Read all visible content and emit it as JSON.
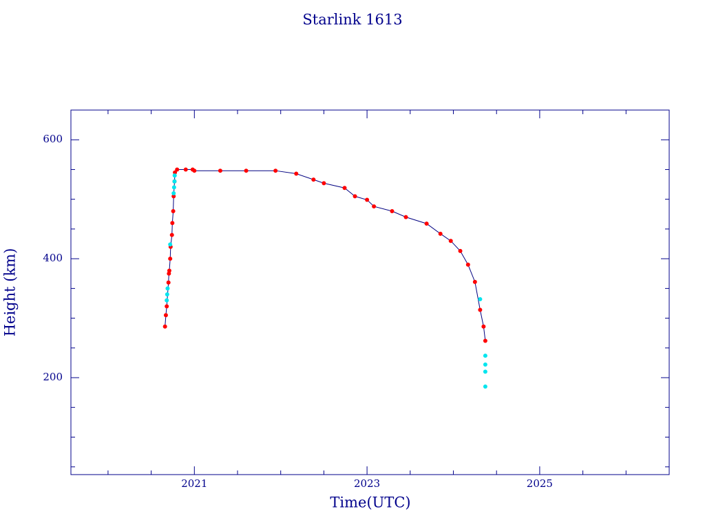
{
  "chart_data": {
    "type": "scatter",
    "title": "Starlink 1613",
    "x_label": "Time(UTC)",
    "y_label": "Height (km)",
    "xlim": [
      2019.57,
      2026.5
    ],
    "xticks": [
      2021,
      2023,
      2025
    ],
    "xminorticks": [
      2020,
      2020.5,
      2021.5,
      2022,
      2022.5,
      2023.5,
      2024,
      2024.5,
      2025.5,
      2026
    ],
    "ylim": [
      37,
      650
    ],
    "yticks": [
      200,
      400,
      600
    ],
    "yminorticks": [
      50,
      100,
      150,
      250,
      300,
      350,
      450,
      500,
      550,
      650
    ],
    "line_color": "#000080",
    "axis_color": "#00008b",
    "series": [
      {
        "color": "#ff0000",
        "connect": true,
        "x": [
          2020.66,
          2020.67,
          2020.68,
          2020.7,
          2020.705,
          2020.71,
          2020.72,
          2020.725,
          2020.74,
          2020.745,
          2020.755,
          2020.76,
          2020.77,
          2020.775,
          2020.8,
          2020.9,
          2020.98,
          2021.0,
          2021.3,
          2021.6,
          2021.94,
          2022.18,
          2022.38,
          2022.5,
          2022.74,
          2022.86,
          2023.0,
          2023.08,
          2023.29,
          2023.45,
          2023.69,
          2023.85,
          2023.97,
          2024.08,
          2024.17,
          2024.25,
          2024.31,
          2024.35,
          2024.37
        ],
        "values": [
          286,
          305,
          320,
          360,
          375,
          380,
          400,
          420,
          440,
          460,
          480,
          505,
          530,
          545,
          550,
          550,
          550,
          548,
          548,
          548,
          548,
          543,
          533,
          527,
          519,
          505,
          499,
          488,
          480,
          470,
          459,
          442,
          430,
          413,
          390,
          361,
          314,
          286,
          262
        ]
      },
      {
        "color": "#00e5ee",
        "connect": false,
        "x": [
          2020.68,
          2020.685,
          2020.69,
          2020.72,
          2020.76,
          2020.765,
          2020.77,
          2020.772,
          2024.31,
          2024.37,
          2024.37,
          2024.37,
          2024.37
        ],
        "values": [
          330,
          340,
          350,
          424,
          510,
          520,
          530,
          540,
          332,
          237,
          222,
          210,
          185
        ]
      }
    ]
  }
}
